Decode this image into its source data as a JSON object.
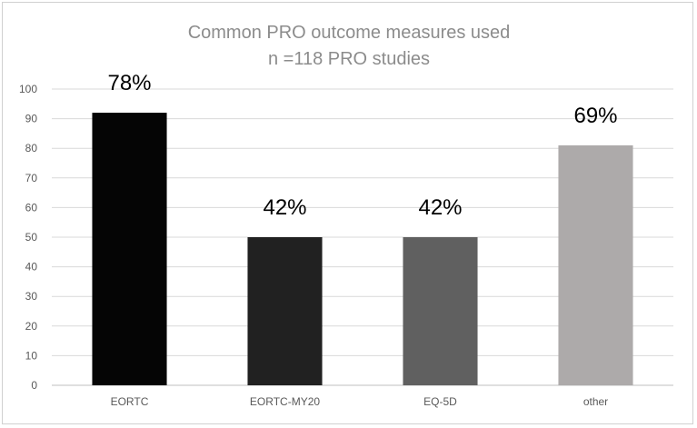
{
  "chart_data": {
    "type": "bar",
    "title": "Common PRO outcome measures used",
    "subtitle": "n =118 PRO studies",
    "categories": [
      "EORTC",
      "EORTC-MY20",
      "EQ-5D",
      "other"
    ],
    "values": [
      92,
      50,
      50,
      81
    ],
    "data_labels": [
      "78%",
      "42%",
      "42%",
      "69%"
    ],
    "bar_colors": [
      "#050505",
      "#212121",
      "#606060",
      "#adaaaa"
    ],
    "ylim": [
      0,
      100
    ],
    "yticks": [
      "0",
      "10",
      "20",
      "30",
      "40",
      "50",
      "60",
      "70",
      "80",
      "90",
      "100"
    ],
    "grid": true,
    "legend": "none"
  }
}
